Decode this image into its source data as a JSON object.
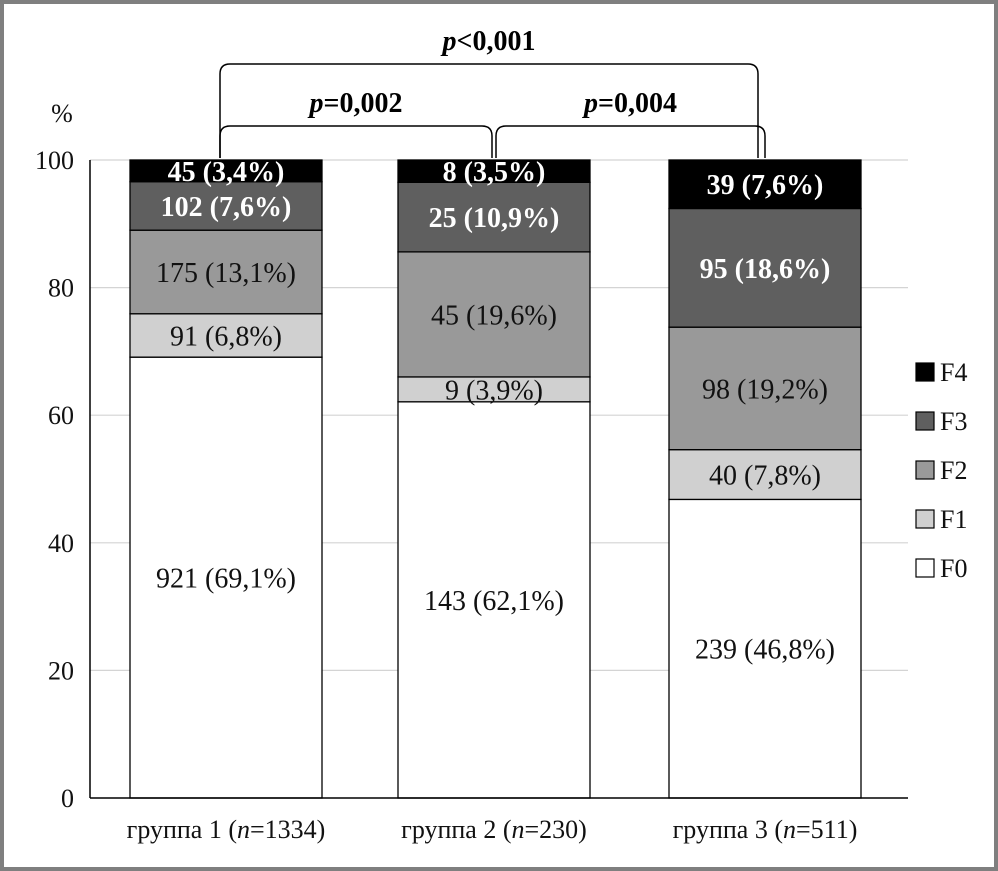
{
  "chart_data": {
    "type": "bar",
    "stacked": true,
    "ylabel": "%",
    "ylim": [
      0,
      100
    ],
    "yticks": [
      "0",
      "20",
      "40",
      "60",
      "80",
      "100"
    ],
    "grid": true,
    "legend_position": "right",
    "categories": [
      {
        "prefix": "группа 1 (",
        "n_symbol": "n",
        "suffix": "=1334)"
      },
      {
        "prefix": "группа 2 (",
        "n_symbol": "n",
        "suffix": "=230)"
      },
      {
        "prefix": "группа 3 (",
        "n_symbol": "n",
        "suffix": "=511)"
      }
    ],
    "series": [
      {
        "name": "F0",
        "color": "#ffffff",
        "text_color": "#111111",
        "bold": false,
        "values": [
          69.1,
          62.1,
          46.8
        ],
        "labels": [
          "921 (69,1%)",
          "143 (62,1%)",
          "239 (46,8%)"
        ]
      },
      {
        "name": "F1",
        "color": "#d0d0d0",
        "text_color": "#111111",
        "bold": false,
        "values": [
          6.8,
          3.9,
          7.8
        ],
        "labels": [
          "91 (6,8%)",
          "9 (3,9%)",
          "40 (7,8%)"
        ]
      },
      {
        "name": "F2",
        "color": "#999999",
        "text_color": "#111111",
        "bold": false,
        "values": [
          13.1,
          19.6,
          19.2
        ],
        "labels": [
          "175 (13,1%)",
          "45 (19,6%)",
          "98 (19,2%)"
        ]
      },
      {
        "name": "F3",
        "color": "#5f5f5f",
        "text_color": "#ffffff",
        "bold": true,
        "values": [
          7.6,
          10.9,
          18.6
        ],
        "labels": [
          "102 (7,6%)",
          "25 (10,9%)",
          "95 (18,6%)"
        ]
      },
      {
        "name": "F4",
        "color": "#000000",
        "text_color": "#ffffff",
        "bold": true,
        "values": [
          3.4,
          3.5,
          7.6
        ],
        "labels": [
          "45 (3,4%)",
          "8 (3,5%)",
          "39 (7,6%)"
        ]
      }
    ],
    "annotations": [
      {
        "from": 0,
        "to": 2,
        "level": 2,
        "symbol": "p",
        "text": "<0,001"
      },
      {
        "from": 0,
        "to": 1,
        "level": 1,
        "symbol": "p",
        "text": "=0,002"
      },
      {
        "from": 1,
        "to": 2,
        "level": 1,
        "symbol": "p",
        "text": "=0,004"
      }
    ]
  }
}
